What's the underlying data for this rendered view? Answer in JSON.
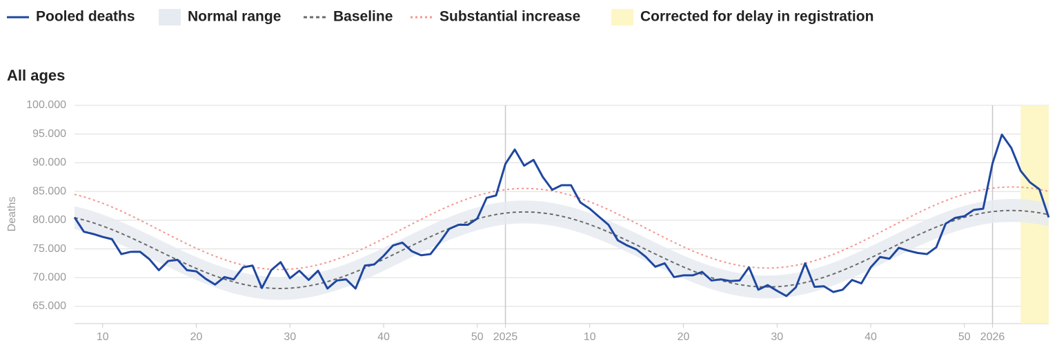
{
  "chart_data": {
    "type": "line",
    "title": "All ages",
    "y_label": "Deaths",
    "grid": true,
    "xlim": [
      7,
      111
    ],
    "ylim": [
      62000,
      100000
    ],
    "xticks": [
      10,
      20,
      30,
      40,
      50,
      {
        "value": 53,
        "label": "2025"
      },
      {
        "value": 62,
        "label": "10"
      },
      {
        "value": 72,
        "label": "20"
      },
      {
        "value": 82,
        "label": "30"
      },
      {
        "value": 92,
        "label": "40"
      },
      {
        "value": 102,
        "label": "50"
      },
      {
        "value": 105,
        "label": "2026"
      }
    ],
    "year_lines": [
      53,
      105
    ],
    "yticks": [
      {
        "value": 65000,
        "label": "65.000"
      },
      {
        "value": 70000,
        "label": "70.000"
      },
      {
        "value": 75000,
        "label": "75.000"
      },
      {
        "value": 80000,
        "label": "80.000"
      },
      {
        "value": 85000,
        "label": "85.000"
      },
      {
        "value": 90000,
        "label": "90.000"
      },
      {
        "value": 95000,
        "label": "95.000"
      },
      {
        "value": 100000,
        "label": "100.000"
      }
    ],
    "x": [
      7,
      8,
      9,
      10,
      11,
      12,
      13,
      14,
      15,
      16,
      17,
      18,
      19,
      20,
      21,
      22,
      23,
      24,
      25,
      26,
      27,
      28,
      29,
      30,
      31,
      32,
      33,
      34,
      35,
      36,
      37,
      38,
      39,
      40,
      41,
      42,
      43,
      44,
      45,
      46,
      47,
      48,
      49,
      50,
      51,
      52,
      53,
      54,
      55,
      56,
      57,
      58,
      59,
      60,
      61,
      62,
      63,
      64,
      65,
      66,
      67,
      68,
      69,
      70,
      71,
      72,
      73,
      74,
      75,
      76,
      77,
      78,
      79,
      80,
      81,
      82,
      83,
      84,
      85,
      86,
      87,
      88,
      89,
      90,
      91,
      92,
      93,
      94,
      95,
      96,
      97,
      98,
      99,
      100,
      101,
      102,
      103,
      104,
      105,
      106,
      107,
      108,
      109,
      110,
      111
    ],
    "band": {
      "name": "Normal range",
      "color": "#e6ebf1",
      "lower": [
        78440,
        78040,
        77550,
        76990,
        76370,
        75690,
        74970,
        74210,
        73440,
        72650,
        71860,
        71080,
        70320,
        69600,
        68920,
        68300,
        67740,
        67250,
        66850,
        66520,
        66290,
        66150,
        66110,
        66160,
        66310,
        66550,
        66890,
        67300,
        67800,
        68370,
        69000,
        69690,
        70420,
        71190,
        71980,
        72780,
        73580,
        74360,
        75130,
        75860,
        76550,
        77180,
        77750,
        78250,
        78660,
        79000,
        79240,
        79390,
        79440,
        79400,
        79260,
        79030,
        78700,
        78300,
        77810,
        77250,
        76630,
        75950,
        75230,
        74470,
        73700,
        72910,
        72120,
        71340,
        70580,
        69860,
        69180,
        68560,
        68000,
        67510,
        67110,
        66780,
        66550,
        66410,
        66370,
        66420,
        66570,
        66810,
        67150,
        67560,
        68060,
        68630,
        69260,
        69950,
        70680,
        71450,
        72240,
        73040,
        73840,
        74620,
        75390,
        76120,
        76810,
        77440,
        78010,
        78510,
        78920,
        79260,
        79500,
        79650,
        79700,
        79660,
        79520,
        79290,
        78960
      ],
      "upper": [
        82440,
        82040,
        81550,
        80990,
        80370,
        79690,
        78970,
        78210,
        77440,
        76650,
        75860,
        75080,
        74320,
        73600,
        72920,
        72300,
        71740,
        71250,
        70850,
        70520,
        70290,
        70150,
        70110,
        70160,
        70310,
        70550,
        70890,
        71300,
        71800,
        72370,
        73000,
        73690,
        74420,
        75190,
        75980,
        76780,
        77580,
        78360,
        79130,
        79860,
        80550,
        81180,
        81750,
        82250,
        82660,
        83000,
        83240,
        83390,
        83440,
        83400,
        83260,
        83030,
        82700,
        82300,
        81810,
        81250,
        80630,
        79950,
        79230,
        78470,
        77700,
        76910,
        76120,
        75340,
        74580,
        73860,
        73180,
        72560,
        72000,
        71510,
        71110,
        70780,
        70550,
        70410,
        70370,
        70420,
        70570,
        70810,
        71150,
        71560,
        72060,
        72630,
        73260,
        73950,
        74680,
        75450,
        76240,
        77040,
        77840,
        78620,
        79390,
        80120,
        80810,
        81440,
        82010,
        82510,
        82920,
        83260,
        83500,
        83650,
        83700,
        83660,
        83520,
        83290,
        82960
      ]
    },
    "shaded_region": {
      "name": "Corrected for delay in registration",
      "color": "#fdf6c6",
      "x": [
        108,
        111
      ]
    },
    "series": [
      {
        "name": "Pooled deaths",
        "color": "#1f47a0",
        "style": "solid",
        "values": [
          80500,
          78000,
          77600,
          77100,
          76700,
          74100,
          74500,
          74500,
          73200,
          71300,
          72900,
          73100,
          71300,
          71100,
          69800,
          68800,
          70100,
          69700,
          71800,
          72100,
          68200,
          71300,
          72700,
          69900,
          71200,
          69600,
          71200,
          68100,
          69500,
          69700,
          68100,
          72100,
          72300,
          73800,
          75600,
          76100,
          74600,
          73900,
          74100,
          76200,
          78500,
          79200,
          79200,
          80300,
          83900,
          84300,
          89800,
          92300,
          89500,
          90500,
          87500,
          85300,
          86100,
          86100,
          83100,
          82000,
          80600,
          79200,
          76500,
          75600,
          74900,
          73600,
          71900,
          72500,
          70100,
          70400,
          70400,
          71000,
          69500,
          69700,
          69400,
          69500,
          71800,
          67900,
          68700,
          67700,
          66800,
          68300,
          72500,
          68400,
          68500,
          67500,
          67900,
          69600,
          69000,
          71800,
          73600,
          73300,
          75200,
          74700,
          74300,
          74100,
          75300,
          79400,
          80400,
          80700,
          81800,
          82000,
          89900,
          94900,
          92600,
          88600,
          86600,
          85400,
          80500
        ]
      },
      {
        "name": "Baseline",
        "color": "#6b6b6b",
        "style": "dashed",
        "values": [
          80440,
          80040,
          79550,
          78990,
          78370,
          77690,
          76970,
          76210,
          75440,
          74650,
          73860,
          73080,
          72320,
          71600,
          70920,
          70300,
          69740,
          69250,
          68850,
          68520,
          68290,
          68150,
          68110,
          68160,
          68310,
          68550,
          68890,
          69300,
          69800,
          70370,
          71000,
          71690,
          72420,
          73190,
          73980,
          74780,
          75580,
          76360,
          77130,
          77860,
          78550,
          79180,
          79750,
          80250,
          80660,
          81000,
          81240,
          81390,
          81440,
          81400,
          81260,
          81030,
          80700,
          80300,
          79810,
          79250,
          78630,
          77950,
          77230,
          76470,
          75700,
          74910,
          74120,
          73340,
          72580,
          71860,
          71180,
          70560,
          70000,
          69510,
          69110,
          68780,
          68550,
          68410,
          68370,
          68420,
          68570,
          68810,
          69150,
          69560,
          70060,
          70630,
          71260,
          71950,
          72680,
          73450,
          74240,
          75040,
          75840,
          76620,
          77390,
          78120,
          78810,
          79440,
          80010,
          80510,
          80920,
          81260,
          81500,
          81650,
          81700,
          81660,
          81520,
          81290,
          80960
        ]
      },
      {
        "name": "Substantial increase",
        "color": "#f4958c",
        "style": "dotted",
        "values": [
          84500,
          84070,
          83550,
          82960,
          82300,
          81580,
          80810,
          80010,
          79180,
          78350,
          77510,
          76680,
          75880,
          75110,
          74390,
          73730,
          73140,
          72620,
          72190,
          71850,
          71600,
          71460,
          71410,
          71470,
          71620,
          71880,
          72230,
          72670,
          73200,
          73800,
          74470,
          75200,
          75980,
          76790,
          77630,
          78480,
          79320,
          80160,
          80970,
          81750,
          82480,
          83150,
          83750,
          84280,
          84720,
          85070,
          85330,
          85480,
          85540,
          85490,
          85350,
          85100,
          84760,
          84330,
          83810,
          83220,
          82560,
          81840,
          81070,
          80270,
          79440,
          78610,
          77770,
          76940,
          76140,
          75370,
          74650,
          73990,
          73400,
          72880,
          72450,
          72110,
          71860,
          71720,
          71670,
          71730,
          71880,
          72140,
          72490,
          72930,
          73460,
          74060,
          74730,
          75460,
          76240,
          77050,
          77890,
          78740,
          79580,
          80420,
          81230,
          82010,
          82740,
          83410,
          84010,
          84540,
          84980,
          85330,
          85590,
          85740,
          85800,
          85750,
          85610,
          85360,
          85020
        ]
      }
    ]
  }
}
